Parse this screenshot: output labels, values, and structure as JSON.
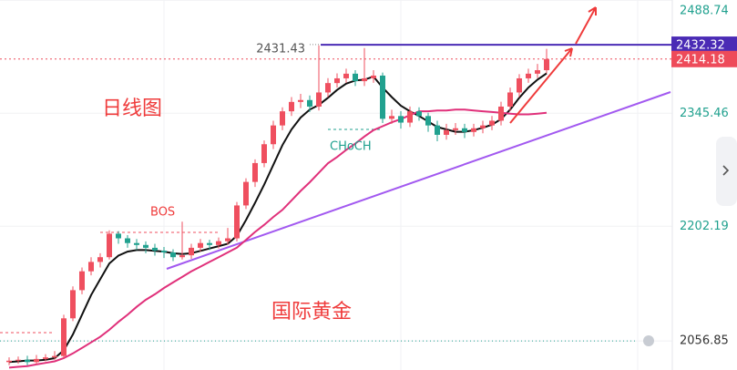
{
  "chart_data": {
    "type": "candlestick",
    "up_color": "#ef4f5f",
    "down_color": "#21a18f",
    "open": [
      2030,
      2031.8,
      2033,
      2030,
      2034,
      2036,
      2037.7,
      2085.5,
      2121.2,
      2145.1,
      2157.0,
      2163.0,
      2192.8,
      2186.9,
      2180.9,
      2178.5,
      2174.9,
      2171.3,
      2169.0,
      2163.0,
      2165.4,
      2174.9,
      2180.9,
      2178.5,
      2183.3,
      2186.9,
      2228.6,
      2258.4,
      2282.3,
      2306.2,
      2330.0,
      2347.9,
      2359.8,
      2362.2,
      2353.9,
      2371.8,
      2383.7,
      2389.7,
      2395.6,
      2386.1,
      2389.7,
      2393.2,
      2338.4,
      2341.9,
      2333.6,
      2347.9,
      2341.9,
      2330.0,
      2318.1,
      2324.0,
      2326.4,
      2321.7,
      2326.4,
      2330.0,
      2336.0,
      2353.9,
      2371.8,
      2389.7,
      2395.6,
      2400.0
    ],
    "high": [
      2036,
      2037,
      2038,
      2039,
      2040,
      2044,
      2090,
      2126,
      2150,
      2163,
      2168,
      2197,
      2196,
      2191,
      2186,
      2183,
      2180,
      2176,
      2173,
      2208,
      2180,
      2186,
      2185,
      2188,
      2200,
      2233,
      2263,
      2287,
      2311,
      2336,
      2353,
      2366,
      2370,
      2368,
      2431.43,
      2390,
      2396,
      2402,
      2400,
      2428,
      2400,
      2397,
      2350,
      2348,
      2354,
      2353,
      2346,
      2336,
      2332,
      2333,
      2332,
      2332,
      2336,
      2342,
      2360,
      2378,
      2395,
      2402,
      2408,
      2427
    ],
    "low": [
      2026,
      2028,
      2026,
      2027,
      2031,
      2033,
      2035,
      2082,
      2116,
      2140,
      2150,
      2160,
      2180,
      2175,
      2172,
      2168,
      2165,
      2162,
      2158,
      2160,
      2161,
      2170,
      2172,
      2174,
      2179,
      2183,
      2224,
      2252,
      2277,
      2300,
      2324,
      2342,
      2352,
      2347,
      2349,
      2366,
      2378,
      2384,
      2380,
      2380,
      2384,
      2333,
      2332,
      2326,
      2328,
      2336,
      2322,
      2310,
      2312,
      2318,
      2314,
      2316,
      2320,
      2324,
      2330,
      2348,
      2366,
      2384,
      2390,
      2396
    ],
    "close": [
      2031.8,
      2033,
      2030,
      2034,
      2036,
      2037.7,
      2085.5,
      2121.2,
      2145.1,
      2157.0,
      2163.0,
      2192.8,
      2186.9,
      2180.9,
      2178.5,
      2174.9,
      2171.3,
      2169.0,
      2163.0,
      2165.4,
      2174.9,
      2180.9,
      2178.5,
      2183.3,
      2186.9,
      2228.6,
      2258.4,
      2282.3,
      2306.2,
      2330.0,
      2347.9,
      2359.8,
      2362.2,
      2353.9,
      2371.8,
      2383.7,
      2389.7,
      2395.6,
      2386.1,
      2389.7,
      2393.2,
      2338.4,
      2341.9,
      2333.6,
      2347.9,
      2341.9,
      2330.0,
      2318.1,
      2324.0,
      2326.4,
      2321.7,
      2326.4,
      2330.0,
      2336.0,
      2353.9,
      2371.8,
      2389.7,
      2395.6,
      2400.0,
      2414.18
    ],
    "series": [
      {
        "color": "#111111",
        "values": [
          2030,
          2031,
          2032,
          2032,
          2033,
          2035,
          2045,
          2065,
          2090,
          2115,
          2135,
          2155,
          2165,
          2170,
          2172,
          2172,
          2171,
          2170,
          2168,
          2167,
          2168,
          2171,
          2174,
          2177,
          2180,
          2190,
          2210,
          2232,
          2255,
          2280,
          2305,
          2325,
          2340,
          2350,
          2356,
          2365,
          2375,
          2383,
          2387,
          2388,
          2392,
          2378,
          2366,
          2355,
          2348,
          2342,
          2335,
          2328,
          2325,
          2322,
          2322,
          2324,
          2327,
          2331,
          2338,
          2350,
          2365,
          2378,
          2388,
          2396
        ]
      },
      {
        "color": "#e0307a",
        "values": [
          2023,
          2024,
          2025,
          2027,
          2029,
          2031,
          2035,
          2041,
          2048,
          2055,
          2062,
          2071,
          2081,
          2090,
          2100,
          2109,
          2116,
          2124,
          2131,
          2138,
          2145,
          2151,
          2157,
          2163,
          2169,
          2175,
          2185,
          2195,
          2204,
          2214,
          2223,
          2235,
          2247,
          2258,
          2270,
          2282,
          2290,
          2299,
          2307,
          2316,
          2324,
          2329,
          2334,
          2338,
          2343,
          2348,
          2348,
          2349,
          2349,
          2350,
          2350,
          2349,
          2348,
          2347,
          2346,
          2345,
          2344,
          2344,
          2345,
          2346
        ]
      }
    ],
    "ylim": [
      2020,
      2489
    ],
    "yticks": [
      2488.74,
      2345.46,
      2202.19,
      2056.85
    ],
    "grid": true,
    "marked_high": 2431.43,
    "price_tags": [
      {
        "value": 2432.32,
        "color": "#4a2bb5"
      },
      {
        "value": 2414.18,
        "color": "#ee4b5a"
      }
    ],
    "annotations": [
      "日线图",
      "BOS",
      "CHoCH",
      "国际黄金"
    ]
  }
}
